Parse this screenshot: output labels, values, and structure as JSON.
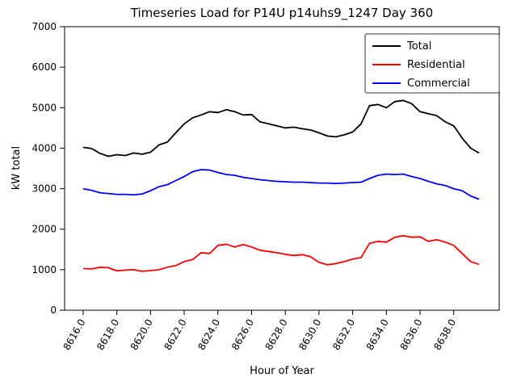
{
  "chart_data": {
    "type": "line",
    "title": "Timeseries Load for P14U p14uhs9_1247  Day 360",
    "xlabel": "Hour of Year",
    "ylabel": "kW total",
    "xlim": [
      8614.9,
      8640.7
    ],
    "ylim": [
      0,
      7000
    ],
    "grid": false,
    "legend_position": "upper right",
    "x_ticks": [
      8616,
      8618,
      8620,
      8622,
      8624,
      8626,
      8628,
      8630,
      8632,
      8634,
      8636,
      8638
    ],
    "x_tick_labels": [
      "8616.0",
      "8618.0",
      "8620.0",
      "8622.0",
      "8624.0",
      "8626.0",
      "8628.0",
      "8630.0",
      "8632.0",
      "8634.0",
      "8636.0",
      "8638.0"
    ],
    "y_ticks": [
      0,
      1000,
      2000,
      3000,
      4000,
      5000,
      6000,
      7000
    ],
    "y_tick_labels": [
      "0",
      "1000",
      "2000",
      "3000",
      "4000",
      "5000",
      "6000",
      "7000"
    ],
    "x": [
      8616.0,
      8616.5,
      8617.0,
      8617.5,
      8618.0,
      8618.5,
      8619.0,
      8619.5,
      8620.0,
      8620.5,
      8621.0,
      8621.5,
      8622.0,
      8622.5,
      8623.0,
      8623.5,
      8624.0,
      8624.5,
      8625.0,
      8625.5,
      8626.0,
      8626.5,
      8627.0,
      8627.5,
      8628.0,
      8628.5,
      8629.0,
      8629.5,
      8630.0,
      8630.5,
      8631.0,
      8631.5,
      8632.0,
      8632.5,
      8633.0,
      8633.5,
      8634.0,
      8634.5,
      8635.0,
      8635.5,
      8636.0,
      8636.5,
      8637.0,
      8637.5,
      8638.0,
      8638.5,
      8639.0,
      8639.5
    ],
    "series": [
      {
        "name": "Total",
        "color": "#000000",
        "values": [
          4020,
          3990,
          3870,
          3800,
          3840,
          3820,
          3880,
          3850,
          3900,
          4080,
          4150,
          4380,
          4600,
          4750,
          4820,
          4900,
          4880,
          4950,
          4900,
          4820,
          4830,
          4650,
          4600,
          4550,
          4500,
          4520,
          4480,
          4450,
          4380,
          4300,
          4280,
          4330,
          4400,
          4600,
          5050,
          5080,
          5000,
          5150,
          5180,
          5100,
          4900,
          4850,
          4800,
          4650,
          4550,
          4250,
          4000,
          3880
        ]
      },
      {
        "name": "Residential",
        "color": "#ff0000",
        "values": [
          1030,
          1020,
          1060,
          1050,
          970,
          990,
          1000,
          960,
          980,
          1000,
          1060,
          1100,
          1200,
          1250,
          1420,
          1400,
          1600,
          1630,
          1560,
          1620,
          1560,
          1480,
          1450,
          1420,
          1380,
          1350,
          1370,
          1320,
          1180,
          1120,
          1150,
          1200,
          1260,
          1300,
          1650,
          1700,
          1680,
          1800,
          1840,
          1800,
          1810,
          1700,
          1740,
          1680,
          1600,
          1400,
          1200,
          1130
        ]
      },
      {
        "name": "Commercial",
        "color": "#0000ff",
        "values": [
          3000,
          2960,
          2900,
          2880,
          2860,
          2860,
          2850,
          2870,
          2950,
          3050,
          3100,
          3200,
          3300,
          3420,
          3470,
          3460,
          3400,
          3350,
          3330,
          3280,
          3250,
          3220,
          3200,
          3180,
          3170,
          3160,
          3160,
          3150,
          3140,
          3140,
          3130,
          3140,
          3150,
          3160,
          3250,
          3330,
          3360,
          3350,
          3360,
          3300,
          3250,
          3180,
          3120,
          3080,
          3000,
          2950,
          2820,
          2740
        ]
      }
    ]
  }
}
